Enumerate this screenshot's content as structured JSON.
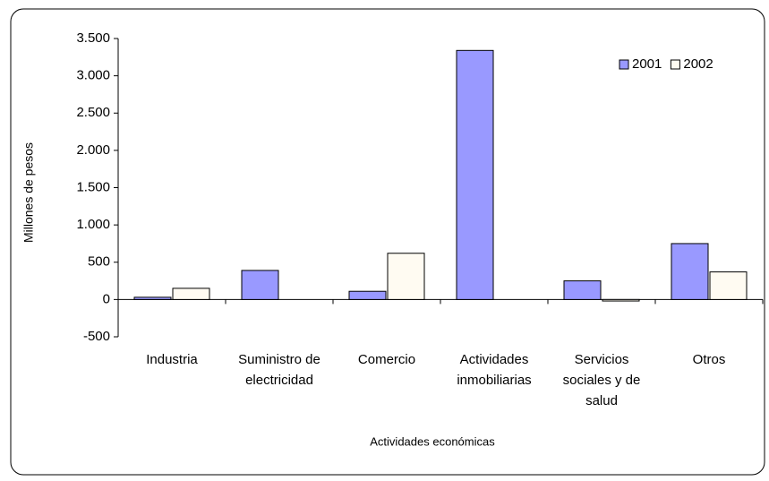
{
  "chart_data": {
    "type": "bar",
    "x_label": "Actividades económicas",
    "y_label": "Millones de pesos",
    "categories": [
      "Industria",
      "Suministro de electricidad",
      "Comercio",
      "Actividades inmobiliarias",
      "Servicios sociales y de salud",
      "Otros"
    ],
    "series": [
      {
        "name": "2001",
        "color": "#9999ff",
        "values": [
          30,
          390,
          110,
          3340,
          250,
          750
        ]
      },
      {
        "name": "2002",
        "color": "#fffbf2",
        "values": [
          150,
          0,
          620,
          0,
          -20,
          370
        ]
      }
    ],
    "ylim": [
      -500,
      3500
    ],
    "yticks": [
      -500,
      0,
      500,
      {
        "value": 1000,
        "label": "1.000"
      },
      {
        "value": 1500,
        "label": "1.500"
      },
      {
        "value": 2000,
        "label": "2.000"
      },
      {
        "value": 2500,
        "label": "2.500"
      },
      {
        "value": 3000,
        "label": "3.000"
      },
      {
        "value": 3500,
        "label": "3.500"
      }
    ],
    "legend": "top-right"
  }
}
